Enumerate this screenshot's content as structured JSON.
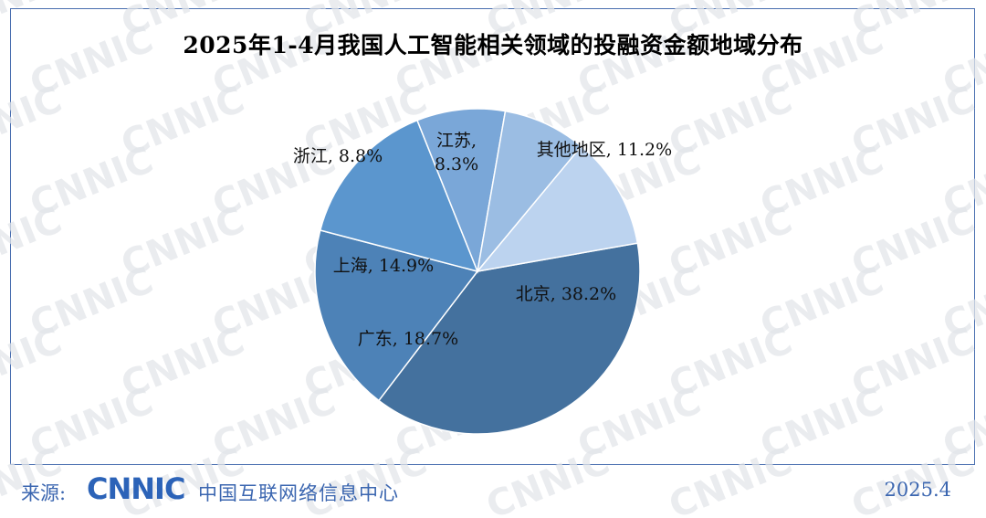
{
  "title": "2025年1-4月我国人工智能相关领域的投融资金额地域分布",
  "watermark_text": "CNNIC",
  "colors": {
    "frame": "#4a6fb0",
    "footer_text": "#3b66b0",
    "logo": "#2c63b8"
  },
  "chart_data": {
    "type": "pie",
    "start_angle_deg": -10,
    "direction": "clockwise",
    "slices": [
      {
        "label": "北京",
        "value": 38.2,
        "display": "北京, 38.2%",
        "color": "#44719e"
      },
      {
        "label": "广东",
        "value": 18.7,
        "display": "广东, 18.7%",
        "color": "#4d82b7"
      },
      {
        "label": "上海",
        "value": 14.9,
        "display": "上海, 14.9%",
        "color": "#5b96ce"
      },
      {
        "label": "浙江",
        "value": 8.8,
        "display": "浙江, 8.8%",
        "color": "#7aa7d8"
      },
      {
        "label": "江苏",
        "value": 8.3,
        "display": "江苏,\n8.3%",
        "color": "#9bbde3"
      },
      {
        "label": "其他地区",
        "value": 11.2,
        "display": "其他地区, 11.2%",
        "color": "#bcd3ef"
      }
    ]
  },
  "footer": {
    "source_label": "来源:",
    "logo_text": "CNNIC",
    "org_name": "中国互联网络信息中心",
    "date": "2025.4"
  }
}
